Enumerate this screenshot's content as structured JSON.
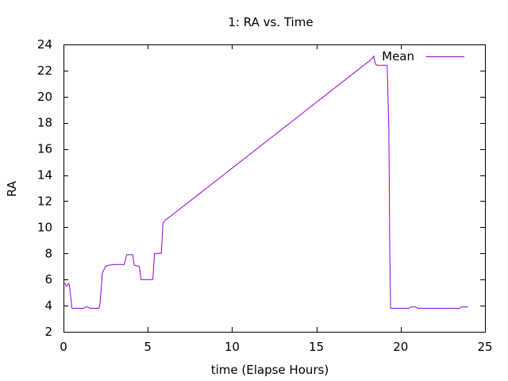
{
  "chart_data": {
    "type": "line",
    "title": "1: RA vs. Time",
    "xlabel": "time (Elapse Hours)",
    "ylabel": "RA",
    "xlim": [
      0,
      25
    ],
    "ylim": [
      2,
      24
    ],
    "xticks": [
      0,
      5,
      10,
      15,
      20,
      25
    ],
    "yticks": [
      2,
      4,
      6,
      8,
      10,
      12,
      14,
      16,
      18,
      20,
      22,
      24
    ],
    "grid": false,
    "legend_position": "top-right",
    "series": [
      {
        "name": "Mean",
        "color": "#9400d3",
        "x": [
          0,
          0.1,
          0.15,
          0.2,
          0.3,
          0.35,
          0.45,
          0.5,
          0.7,
          1.1,
          1.2,
          1.3,
          1.45,
          1.55,
          1.6,
          2.1,
          2.15,
          2.25,
          2.3,
          2.5,
          2.7,
          3.0,
          3.6,
          3.75,
          3.9,
          4.1,
          4.2,
          4.5,
          4.6,
          5.1,
          5.3,
          5.4,
          5.7,
          5.8,
          5.9,
          6.0,
          6.5,
          18.3,
          18.4,
          18.5,
          18.6,
          19.2,
          19.3,
          19.35,
          19.4,
          20.5,
          20.6,
          20.9,
          21.0,
          23.5,
          23.6,
          24.0
        ],
        "y": [
          5.7,
          5.7,
          5.5,
          5.5,
          5.7,
          5.6,
          4.4,
          3.8,
          3.8,
          3.8,
          3.8,
          3.9,
          3.9,
          3.8,
          3.8,
          3.8,
          4.0,
          5.5,
          6.5,
          7.0,
          7.1,
          7.15,
          7.15,
          7.9,
          7.9,
          7.9,
          7.1,
          7.0,
          6.0,
          6.0,
          6.0,
          8.0,
          8.0,
          8.0,
          10.3,
          10.5,
          11.0,
          22.9,
          23.1,
          22.5,
          22.4,
          22.4,
          17.5,
          8.5,
          3.8,
          3.8,
          3.9,
          3.9,
          3.8,
          3.8,
          3.9,
          3.9
        ]
      }
    ]
  }
}
